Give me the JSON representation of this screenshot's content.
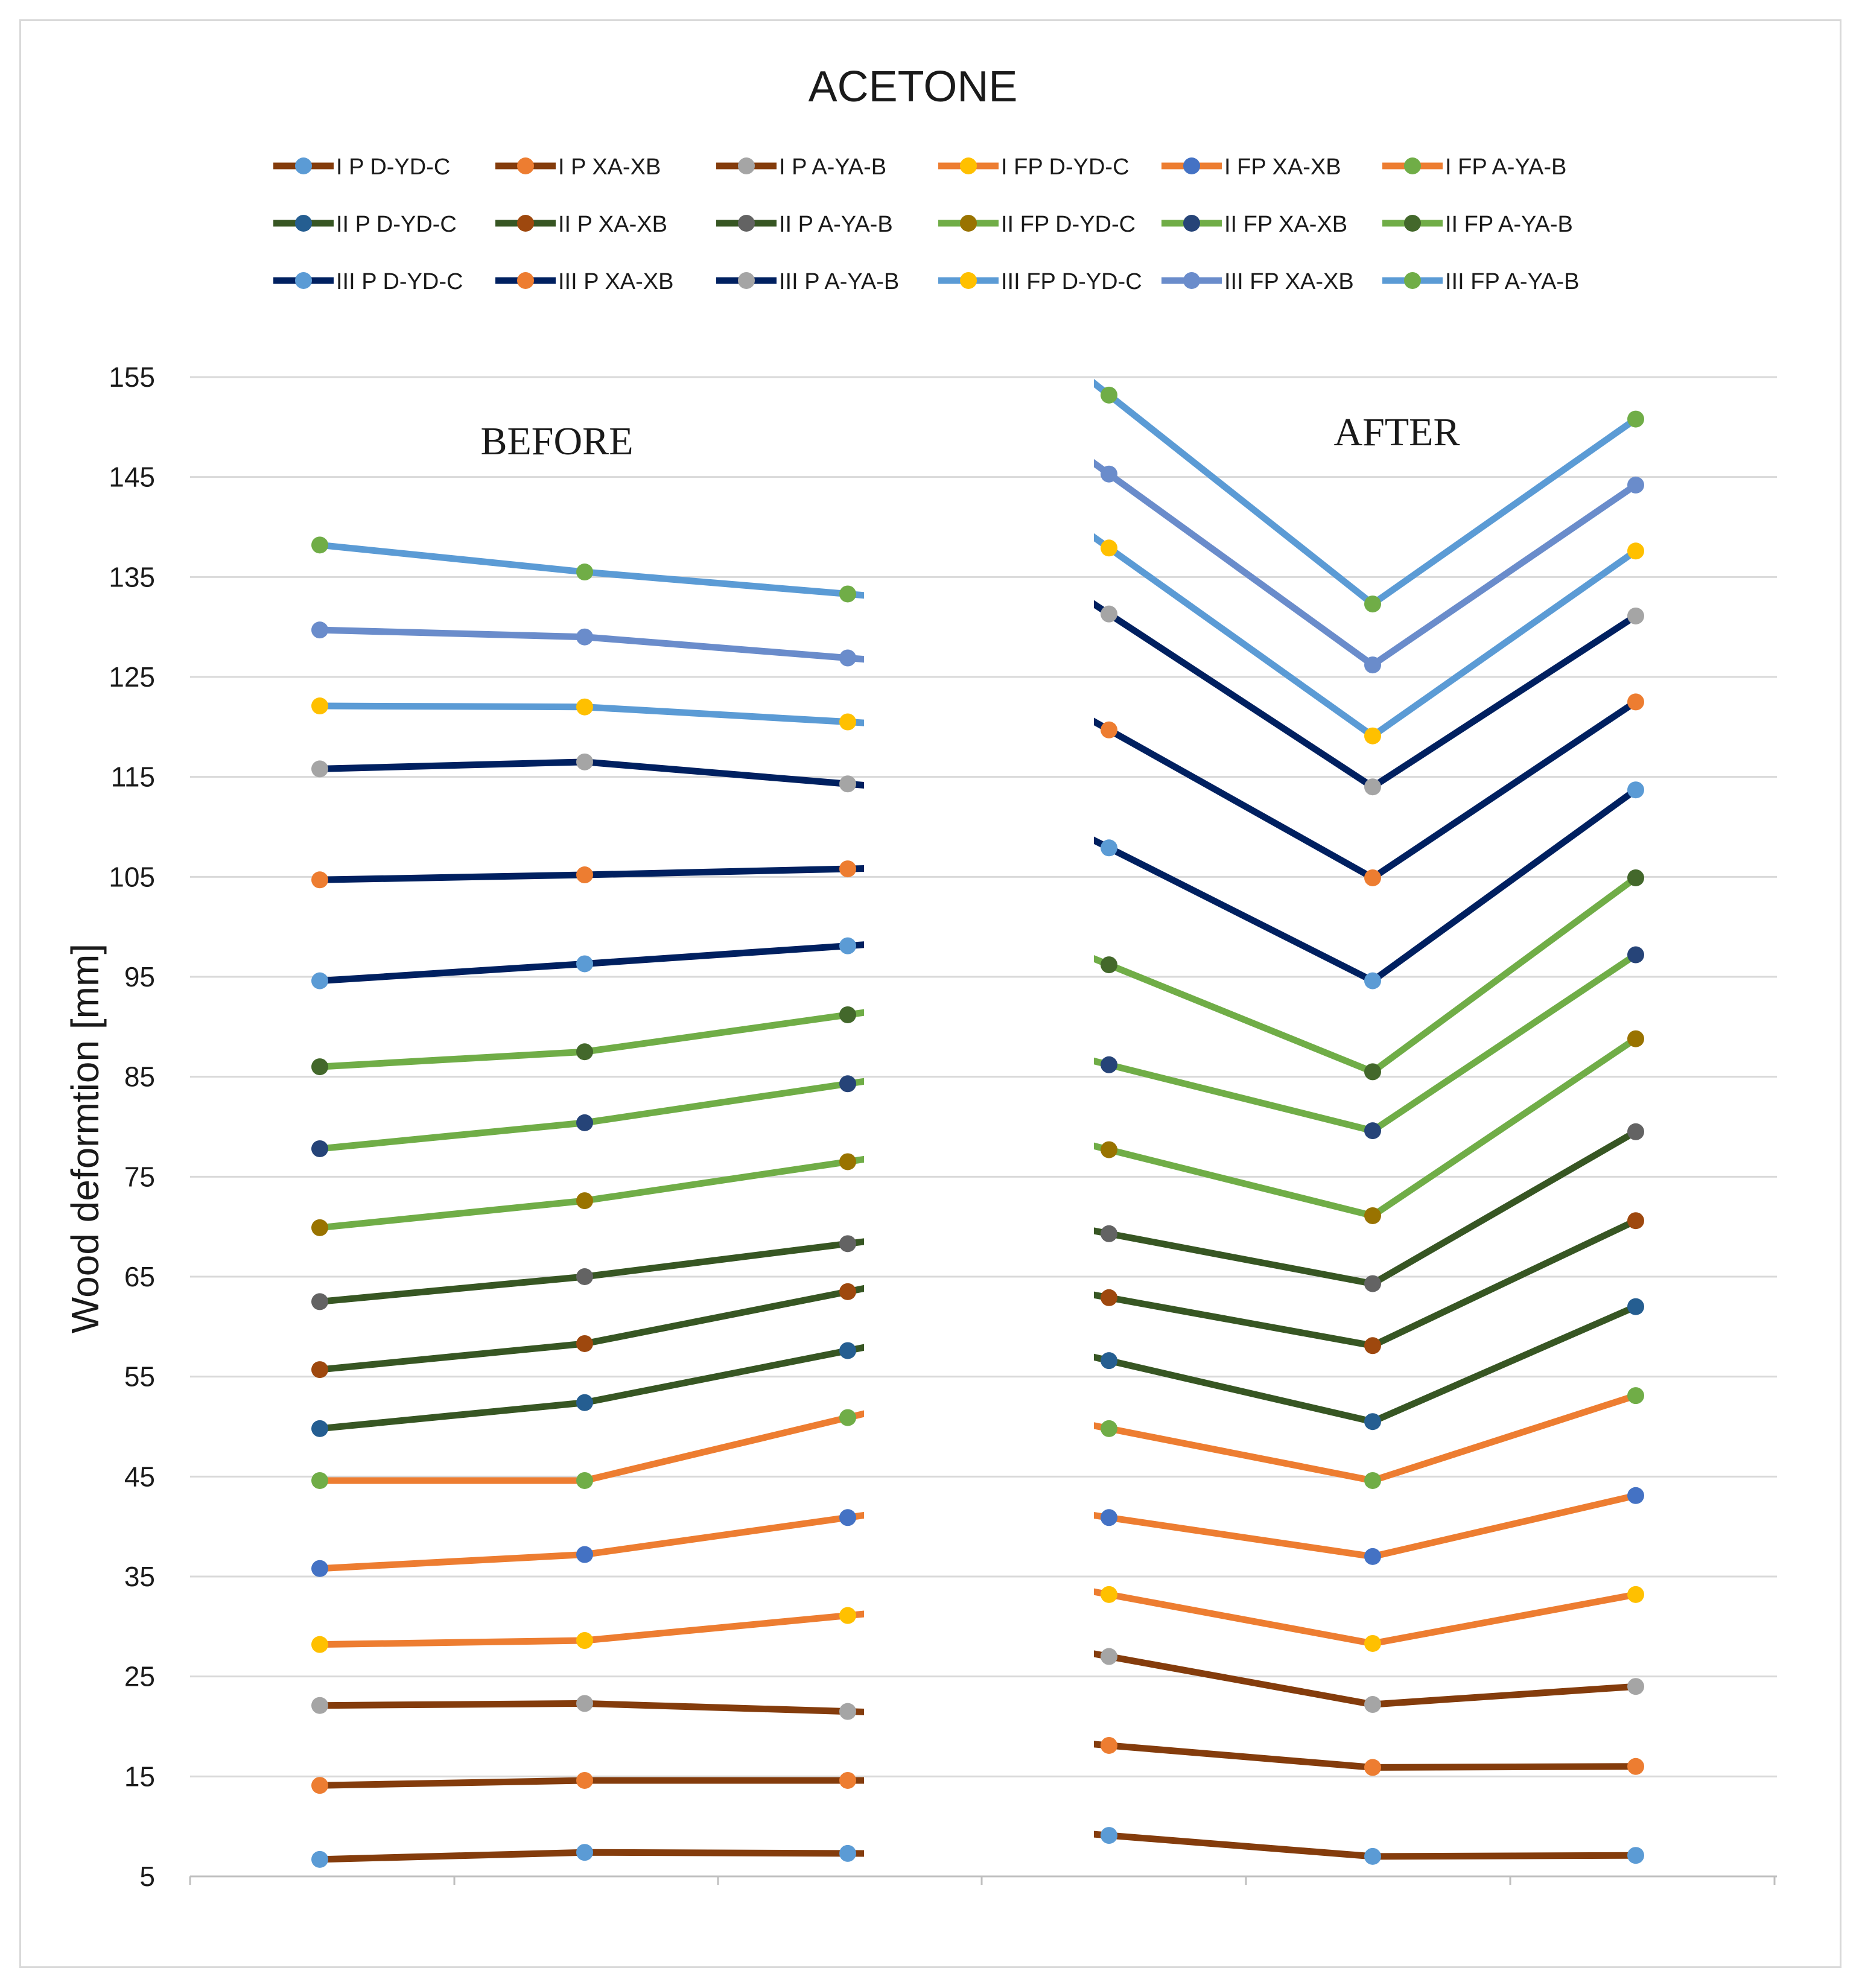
{
  "chart_data": {
    "type": "line",
    "title": "ACETONE",
    "ylabel": "Wood deformtion [mm]",
    "xlabel": "",
    "ylim": [
      5,
      155
    ],
    "yticks": [
      5,
      15,
      25,
      35,
      45,
      55,
      65,
      75,
      85,
      95,
      105,
      115,
      125,
      135,
      145,
      155
    ],
    "grid": true,
    "legend_position": "top",
    "panels": [
      {
        "label": "BEFORE",
        "x": [
          1,
          2,
          3
        ]
      },
      {
        "label": "AFTER",
        "x": [
          4,
          5,
          6
        ]
      }
    ],
    "series": [
      {
        "name": "I P D-YD-C",
        "line": "#843C0C",
        "marker": "#5B9BD5",
        "before": [
          6.7,
          7.4,
          7.3
        ],
        "after": [
          9.1,
          7.0,
          7.1
        ]
      },
      {
        "name": "I P XA-XB",
        "line": "#843C0C",
        "marker": "#ED7D31",
        "before": [
          14.1,
          14.6,
          14.6
        ],
        "after": [
          18.1,
          15.9,
          16.0
        ]
      },
      {
        "name": "I P A-YA-B",
        "line": "#843C0C",
        "marker": "#A5A5A5",
        "before": [
          22.1,
          22.3,
          21.5
        ],
        "after": [
          27.0,
          22.2,
          24.0
        ]
      },
      {
        "name": "I FP D-YD-C",
        "line": "#ED7D31",
        "marker": "#FFC000",
        "before": [
          28.2,
          28.6,
          31.1
        ],
        "after": [
          33.2,
          28.3,
          33.2
        ]
      },
      {
        "name": "I FP XA-XB",
        "line": "#ED7D31",
        "marker": "#4472C4",
        "before": [
          35.8,
          37.2,
          40.9
        ],
        "after": [
          40.9,
          37.0,
          43.1
        ]
      },
      {
        "name": "I FP A-YA-B",
        "line": "#ED7D31",
        "marker": "#70AD47",
        "before": [
          44.6,
          44.6,
          50.9
        ],
        "after": [
          49.8,
          44.6,
          53.1
        ]
      },
      {
        "name": "II P D-YD-C",
        "line": "#375623",
        "marker": "#255E91",
        "before": [
          49.8,
          52.4,
          57.6
        ],
        "after": [
          56.6,
          50.5,
          62.0
        ]
      },
      {
        "name": "II P XA-XB",
        "line": "#375623",
        "marker": "#9E480E",
        "before": [
          55.7,
          58.3,
          63.5
        ],
        "after": [
          62.9,
          58.1,
          70.6
        ]
      },
      {
        "name": "II P A-YA-B",
        "line": "#375623",
        "marker": "#636363",
        "before": [
          62.5,
          65.0,
          68.3
        ],
        "after": [
          69.3,
          64.3,
          79.5
        ]
      },
      {
        "name": "II FP D-YD-C",
        "line": "#70AD47",
        "marker": "#997300",
        "before": [
          69.9,
          72.6,
          76.5
        ],
        "after": [
          77.7,
          71.1,
          88.8
        ]
      },
      {
        "name": "II FP XA-XB",
        "line": "#70AD47",
        "marker": "#264478",
        "before": [
          77.8,
          80.4,
          84.3
        ],
        "after": [
          86.2,
          79.6,
          97.2
        ]
      },
      {
        "name": "II FP A-YA-B",
        "line": "#70AD47",
        "marker": "#43682B",
        "before": [
          86.0,
          87.5,
          91.2
        ],
        "after": [
          96.2,
          85.5,
          104.9
        ]
      },
      {
        "name": "III P D-YD-C",
        "line": "#002060",
        "marker": "#5B9BD5",
        "before": [
          94.6,
          96.3,
          98.1
        ],
        "after": [
          107.9,
          94.6,
          113.7
        ]
      },
      {
        "name": "III P XA-XB",
        "line": "#002060",
        "marker": "#ED7D31",
        "before": [
          104.7,
          105.2,
          105.8
        ],
        "after": [
          119.7,
          104.9,
          122.5
        ]
      },
      {
        "name": "III P A-YA-B",
        "line": "#002060",
        "marker": "#A5A5A5",
        "before": [
          115.8,
          116.5,
          114.3
        ],
        "after": [
          131.3,
          114.0,
          131.1
        ]
      },
      {
        "name": "III FP D-YD-C",
        "line": "#5B9BD5",
        "marker": "#FFC000",
        "before": [
          122.1,
          122.0,
          120.5
        ],
        "after": [
          137.9,
          119.1,
          137.6
        ]
      },
      {
        "name": "III FP XA-XB",
        "line": "#6A8CCB",
        "marker": "#6A8CCB",
        "before": [
          129.7,
          129.0,
          126.9
        ],
        "after": [
          145.3,
          126.2,
          144.2
        ]
      },
      {
        "name": "III FP A-YA-B",
        "line": "#5B9BD5",
        "marker": "#70AD47",
        "before": [
          138.2,
          135.5,
          133.3
        ],
        "after": [
          153.2,
          132.3,
          150.8
        ]
      }
    ]
  }
}
